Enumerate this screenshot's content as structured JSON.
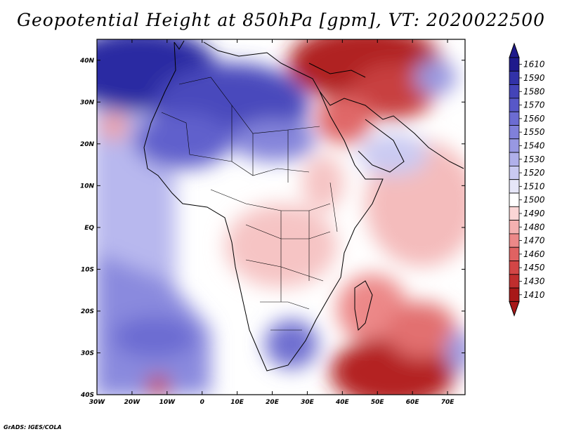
{
  "title": "Geopotential Height at 850hPa [gpm], VT: 2020022500",
  "credit": "GrADS: IGES/COLA",
  "map": {
    "variable": "Geopotential Height",
    "level": "850hPa",
    "units": "gpm",
    "valid_time": "2020022500",
    "lon_ticks": [
      "30W",
      "20W",
      "10W",
      "0",
      "10E",
      "20E",
      "30E",
      "40E",
      "50E",
      "60E",
      "70E"
    ],
    "lat_ticks": [
      "40N",
      "30N",
      "20N",
      "10N",
      "EQ",
      "10S",
      "20S",
      "30S",
      "40S"
    ],
    "lon_range": [
      -30,
      75
    ],
    "lat_range": [
      -40,
      45
    ]
  },
  "colorbar": {
    "labels": [
      "1610",
      "1590",
      "1580",
      "1570",
      "1560",
      "1550",
      "1540",
      "1530",
      "1520",
      "1510",
      "1500",
      "1490",
      "1480",
      "1470",
      "1460",
      "1450",
      "1430",
      "1410"
    ],
    "colors": [
      "#1f1a8c",
      "#3232a8",
      "#4444b8",
      "#5858c8",
      "#6c6cd2",
      "#8080da",
      "#9898e2",
      "#b0b0ea",
      "#cacaf2",
      "#e6e6f8",
      "#ffffff",
      "#fbd6d6",
      "#f4b0b0",
      "#ec8888",
      "#e06262",
      "#d24646",
      "#c02e2e",
      "#a81818"
    ]
  }
}
